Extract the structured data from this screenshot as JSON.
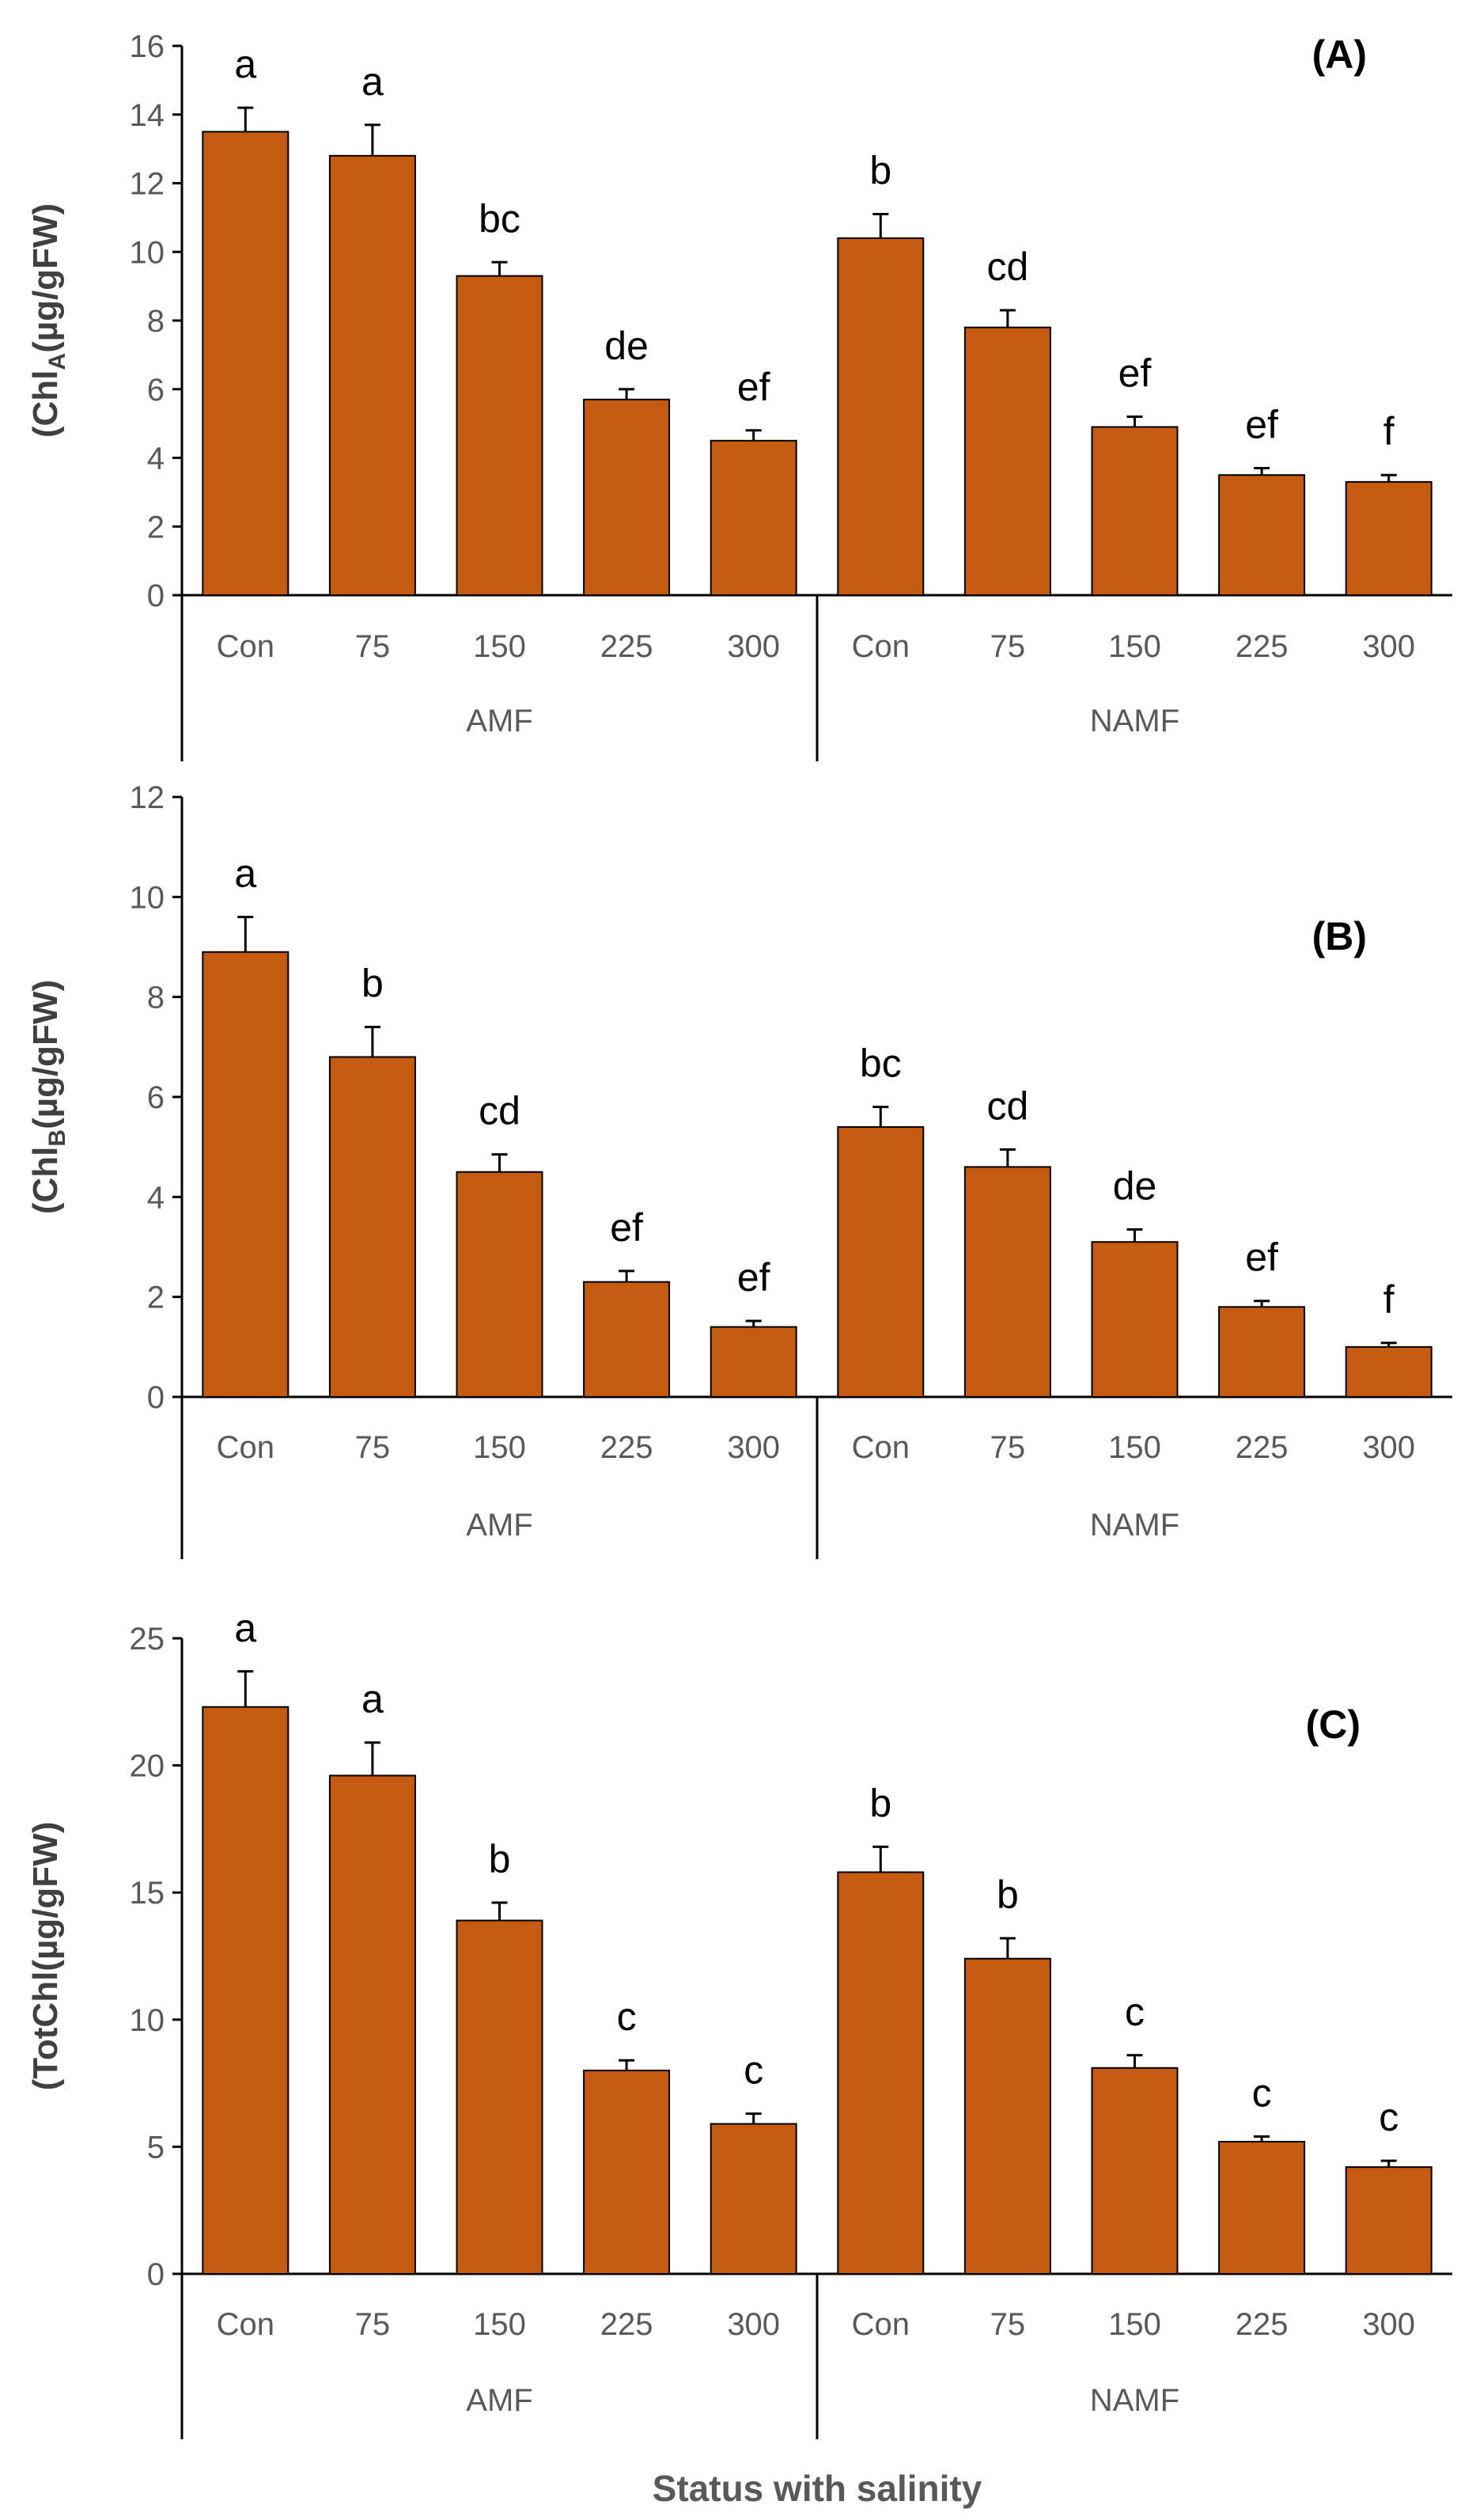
{
  "colors": {
    "bar": "#c55a11",
    "bar_edge": "#000000",
    "axis": "#000000"
  },
  "chart_data": [
    {
      "type": "bar",
      "panel_label": "(A)",
      "ylabel": "(ChlA(µg/gFW)",
      "ylabel_parts": [
        "(Chl",
        "A",
        "(µg/gFW)"
      ],
      "ylim": [
        0,
        16
      ],
      "yticks": [
        0,
        2,
        4,
        6,
        8,
        10,
        12,
        14,
        16
      ],
      "groups": [
        "AMF",
        "NAMF"
      ],
      "categories": [
        "Con",
        "75",
        "150",
        "225",
        "300",
        "Con",
        "75",
        "150",
        "225",
        "300"
      ],
      "values": [
        13.5,
        12.8,
        9.3,
        5.7,
        4.5,
        10.4,
        7.8,
        4.9,
        3.5,
        3.3
      ],
      "errors": [
        0.7,
        0.9,
        0.4,
        0.3,
        0.3,
        0.7,
        0.5,
        0.3,
        0.2,
        0.2
      ],
      "letters": [
        "a",
        "a",
        "bc",
        "de",
        "ef",
        "b",
        "cd",
        "ef",
        "ef",
        "f"
      ]
    },
    {
      "type": "bar",
      "panel_label": "(B)",
      "ylabel": "(ChlB(µg/gFW)",
      "ylabel_parts": [
        "(Chl",
        "B",
        "(µg/gFW)"
      ],
      "ylim": [
        0,
        12
      ],
      "yticks": [
        0,
        2,
        4,
        6,
        8,
        10,
        12
      ],
      "groups": [
        "AMF",
        "NAMF"
      ],
      "categories": [
        "Con",
        "75",
        "150",
        "225",
        "300",
        "Con",
        "75",
        "150",
        "225",
        "300"
      ],
      "values": [
        8.9,
        6.8,
        4.5,
        2.3,
        1.4,
        5.4,
        4.6,
        3.1,
        1.8,
        1.0
      ],
      "errors": [
        0.7,
        0.6,
        0.35,
        0.22,
        0.12,
        0.4,
        0.35,
        0.25,
        0.12,
        0.08
      ],
      "letters": [
        "a",
        "b",
        "cd",
        "ef",
        "ef",
        "bc",
        "cd",
        "de",
        "ef",
        "f"
      ]
    },
    {
      "type": "bar",
      "panel_label": "(C)",
      "ylabel": "(TotChl(µg/gFW)",
      "ylabel_parts": [
        "(TotChl(µg/gFW)"
      ],
      "ylim": [
        0,
        25
      ],
      "yticks": [
        0,
        5,
        10,
        15,
        20,
        25
      ],
      "groups": [
        "AMF",
        "NAMF"
      ],
      "categories": [
        "Con",
        "75",
        "150",
        "225",
        "300",
        "Con",
        "75",
        "150",
        "225",
        "300"
      ],
      "values": [
        22.3,
        19.6,
        13.9,
        8.0,
        5.9,
        15.8,
        12.4,
        8.1,
        5.2,
        4.2
      ],
      "errors": [
        1.4,
        1.3,
        0.7,
        0.4,
        0.4,
        1.0,
        0.8,
        0.5,
        0.2,
        0.25
      ],
      "letters": [
        "a",
        "a",
        "b",
        "c",
        "c",
        "b",
        "b",
        "c",
        "c",
        "c"
      ],
      "xlabel": "Status with salinity"
    }
  ]
}
